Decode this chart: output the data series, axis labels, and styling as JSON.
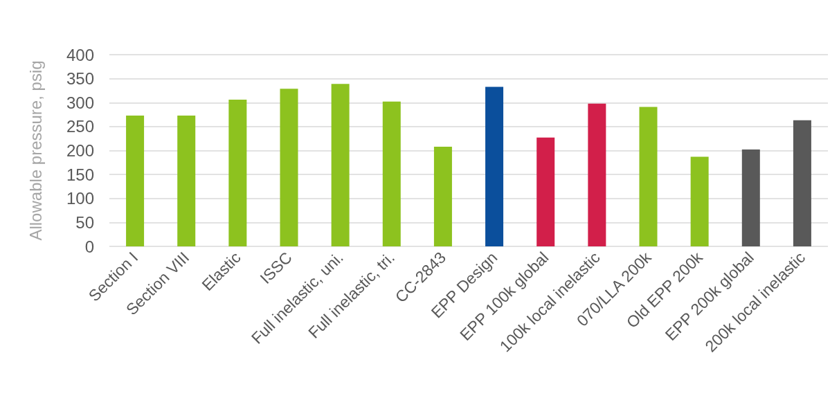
{
  "chart_data": {
    "type": "bar",
    "ylabel": "Allowable pressure, psig",
    "categories": [
      "Section I",
      "Section VIII",
      "Elastic",
      "ISSC",
      "Full inelastic, uni.",
      "Full inelastic, tri.",
      "CC-2843",
      "EPP Design",
      "EPP 100k global",
      "100k local inelastic",
      "070/LLA 200k",
      "Old EPP 200k",
      "EPP 200k global",
      "200k local inelastic"
    ],
    "values": [
      273,
      273,
      306,
      329,
      339,
      302,
      208,
      333,
      227,
      298,
      291,
      187,
      202,
      263
    ],
    "colors": [
      "#8dc21f",
      "#8dc21f",
      "#8dc21f",
      "#8dc21f",
      "#8dc21f",
      "#8dc21f",
      "#8dc21f",
      "#0b4f9c",
      "#d21f4a",
      "#d21f4a",
      "#8dc21f",
      "#8dc21f",
      "#595959",
      "#595959"
    ],
    "ylim": [
      0,
      400
    ],
    "yticks": [
      0,
      50,
      100,
      150,
      200,
      250,
      300,
      350,
      400
    ],
    "grid": "y"
  }
}
